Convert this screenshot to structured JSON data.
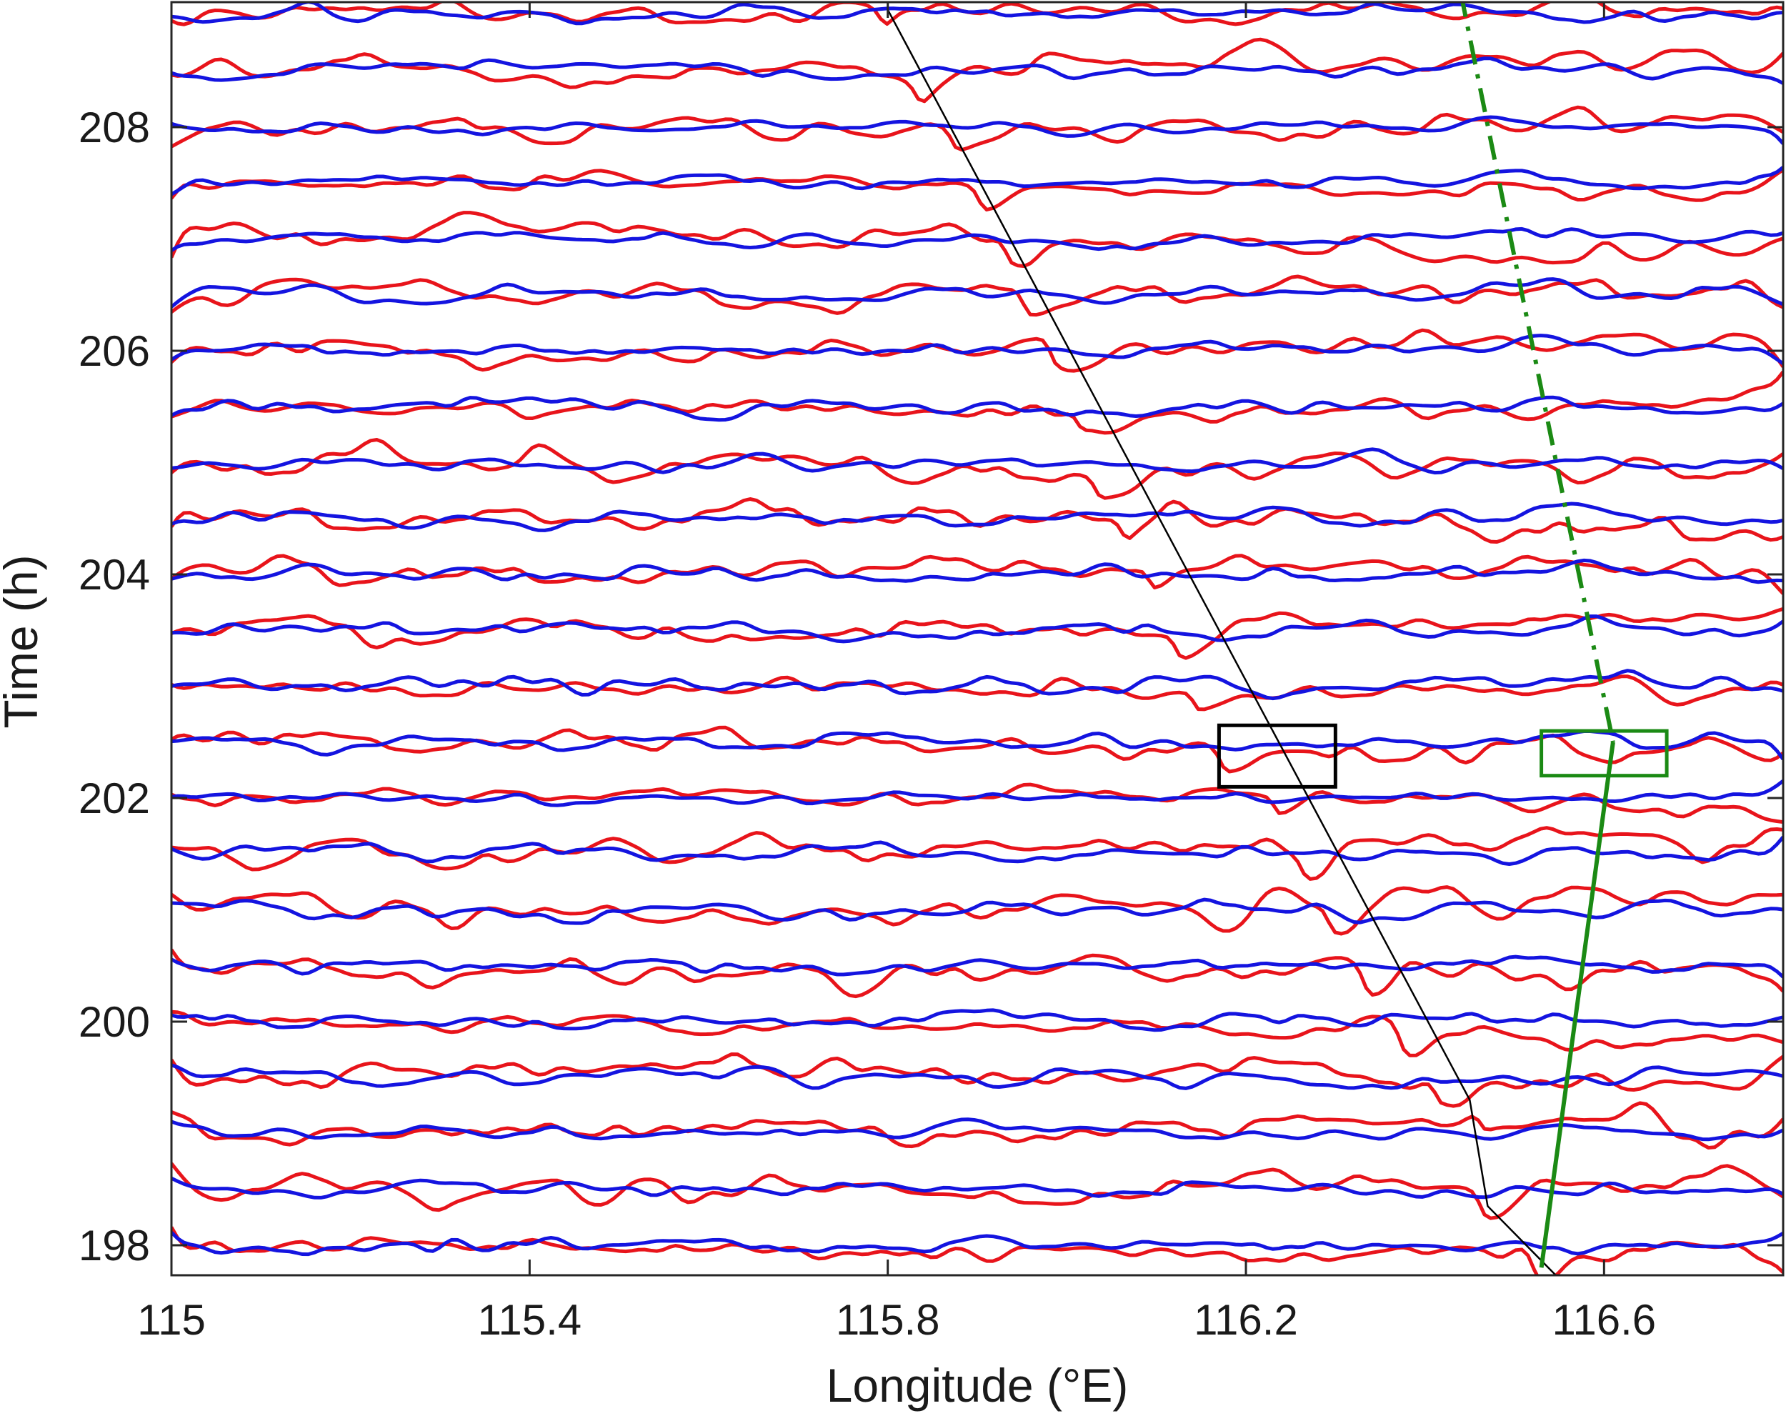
{
  "chart_data": {
    "type": "line",
    "title": "",
    "xlabel": "Longitude (°E)",
    "ylabel": "Time (h)",
    "xlim": [
      115.0,
      116.8
    ],
    "ylim": [
      197.65,
      209.3
    ],
    "xticks": [
      115.0,
      115.4,
      115.8,
      116.2,
      116.6
    ],
    "xtick_labels": [
      "115",
      "115.4",
      "115.8",
      "116.2",
      "116.6"
    ],
    "yticks": [
      198,
      200,
      202,
      204,
      206,
      208
    ],
    "ytick_labels": [
      "198",
      "200",
      "202",
      "204",
      "206",
      "208"
    ],
    "grid": false,
    "legend": "none",
    "colors": {
      "red_series": "#e8141b",
      "blue_series": "#1414e0",
      "trend_black": "#000000",
      "trend_green": "#1b8a14",
      "axes": "#262626"
    },
    "trace_baselines_h": [
      198.0,
      198.5,
      199.0,
      199.5,
      200.0,
      200.5,
      201.0,
      201.5,
      202.0,
      202.5,
      203.0,
      203.5,
      204.0,
      204.5,
      205.0,
      205.5,
      206.0,
      206.5,
      207.0,
      207.5,
      208.0,
      208.5,
      209.0
    ],
    "red_trough_track": {
      "x": [
        115.8,
        115.84,
        115.88,
        115.91,
        115.94,
        115.96,
        115.99,
        116.02,
        116.04,
        116.07,
        116.1,
        116.13,
        116.15,
        116.18,
        116.21,
        116.24,
        116.27,
        116.3,
        116.34,
        116.38,
        116.42,
        116.47,
        116.53
      ],
      "y": [
        209.0,
        208.5,
        208.0,
        207.5,
        207.0,
        206.5,
        206.1,
        205.6,
        205.1,
        204.65,
        204.2,
        203.7,
        203.2,
        202.7,
        202.3,
        201.85,
        201.3,
        200.9,
        200.45,
        199.9,
        199.4,
        198.75,
        197.9
      ]
    },
    "blue_peak_track": {
      "x": [
        116.44,
        116.46,
        116.48,
        116.5,
        116.52,
        116.54,
        116.56,
        116.58,
        116.6
      ],
      "y": [
        209.2,
        208.5,
        207.8,
        207.0,
        206.2,
        205.4,
        204.6,
        203.6,
        202.5
      ]
    },
    "series": [
      {
        "type": "line",
        "x": [
          115.8,
          116.45,
          116.47,
          116.55
        ],
        "y": [
          209.05,
          199.3,
          198.35,
          197.7
        ]
      },
      {
        "type": "line",
        "style": "dash-dot",
        "x": [
          116.44,
          116.61
        ],
        "y": [
          209.2,
          202.5
        ]
      },
      {
        "type": "line",
        "x": [
          116.61,
          116.53
        ],
        "y": [
          202.5,
          197.8
        ]
      }
    ],
    "annotations": [
      {
        "type": "box",
        "x": [
          116.17,
          116.3
        ],
        "y": [
          202.1,
          202.65
        ]
      },
      {
        "type": "box",
        "x": [
          116.53,
          116.67
        ],
        "y": [
          202.2,
          202.6
        ]
      }
    ]
  }
}
